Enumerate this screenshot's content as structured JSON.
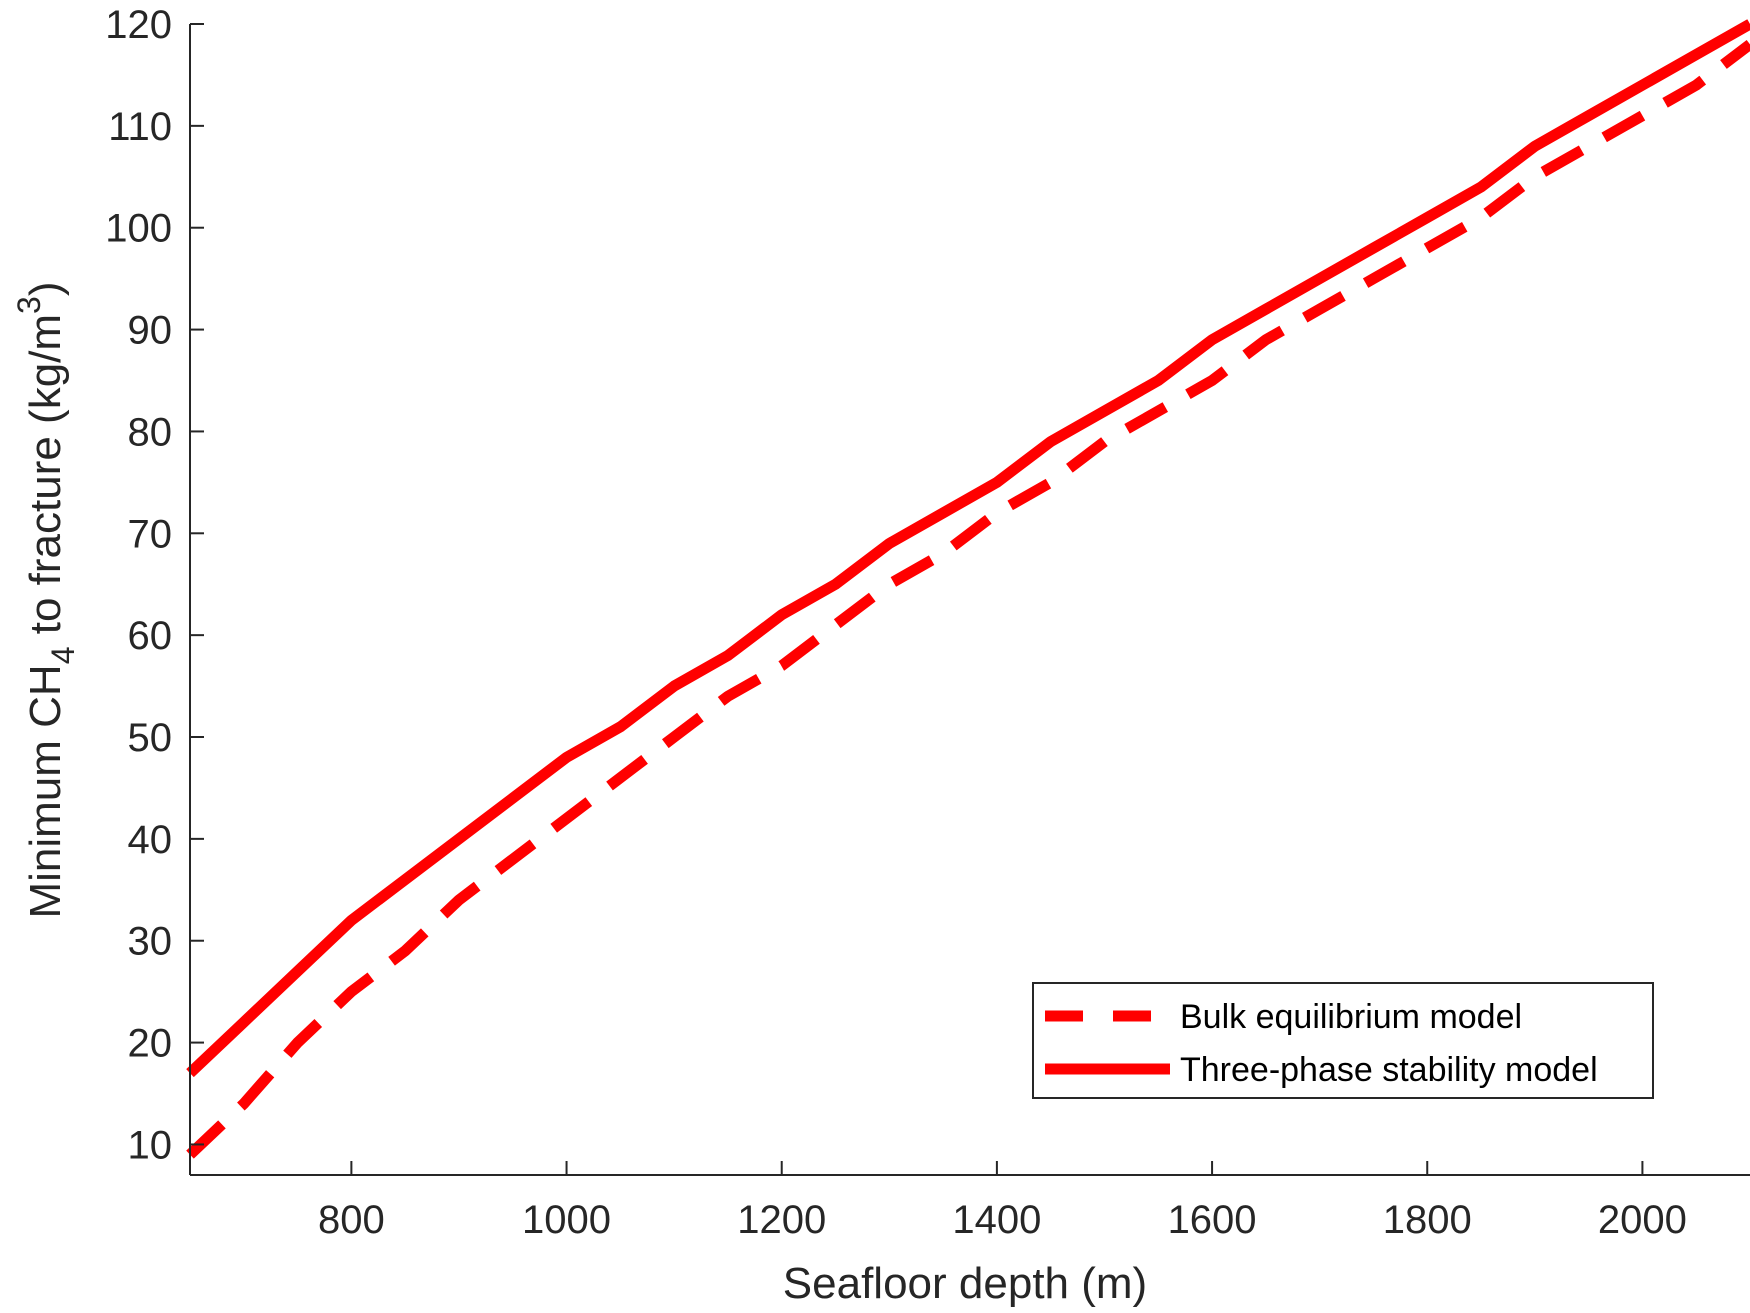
{
  "chart_data": {
    "type": "line",
    "title": "",
    "xlabel": "Seafloor depth (m)",
    "ylabel": {
      "pre": "Minimum CH",
      "sub": "4",
      "mid": " to fracture (kg/m",
      "sup": "3",
      "post": ")"
    },
    "xlim": [
      650,
      2100
    ],
    "ylim": [
      7,
      120
    ],
    "xticks": [
      800,
      1000,
      1200,
      1400,
      1600,
      1800,
      2000
    ],
    "yticks": [
      10,
      20,
      30,
      40,
      50,
      60,
      70,
      80,
      90,
      100,
      110,
      120
    ],
    "grid": false,
    "legend_position": "bottom-right",
    "series": [
      {
        "name": "Bulk equilibrium model",
        "style": "dashed",
        "color": "#ff0000",
        "x": [
          650,
          700,
          750,
          800,
          850,
          900,
          950,
          1000,
          1050,
          1100,
          1150,
          1200,
          1250,
          1300,
          1350,
          1400,
          1450,
          1500,
          1550,
          1600,
          1650,
          1700,
          1750,
          1800,
          1850,
          1900,
          1950,
          2000,
          2050,
          2100
        ],
        "y": [
          9,
          14,
          20,
          25,
          29,
          34,
          38,
          42,
          46,
          50,
          54,
          57,
          61,
          65,
          68,
          72,
          75,
          79,
          82,
          85,
          89,
          92,
          95,
          98,
          101,
          105,
          108,
          111,
          114,
          118
        ]
      },
      {
        "name": "Three-phase stability model",
        "style": "solid",
        "color": "#ff0000",
        "x": [
          650,
          700,
          750,
          800,
          850,
          900,
          950,
          1000,
          1050,
          1100,
          1150,
          1200,
          1250,
          1300,
          1350,
          1400,
          1450,
          1500,
          1550,
          1600,
          1650,
          1700,
          1750,
          1800,
          1850,
          1900,
          1950,
          2000,
          2050,
          2100
        ],
        "y": [
          17,
          22,
          27,
          32,
          36,
          40,
          44,
          48,
          51,
          55,
          58,
          62,
          65,
          69,
          72,
          75,
          79,
          82,
          85,
          89,
          92,
          95,
          98,
          101,
          104,
          108,
          111,
          114,
          117,
          120
        ]
      }
    ]
  }
}
